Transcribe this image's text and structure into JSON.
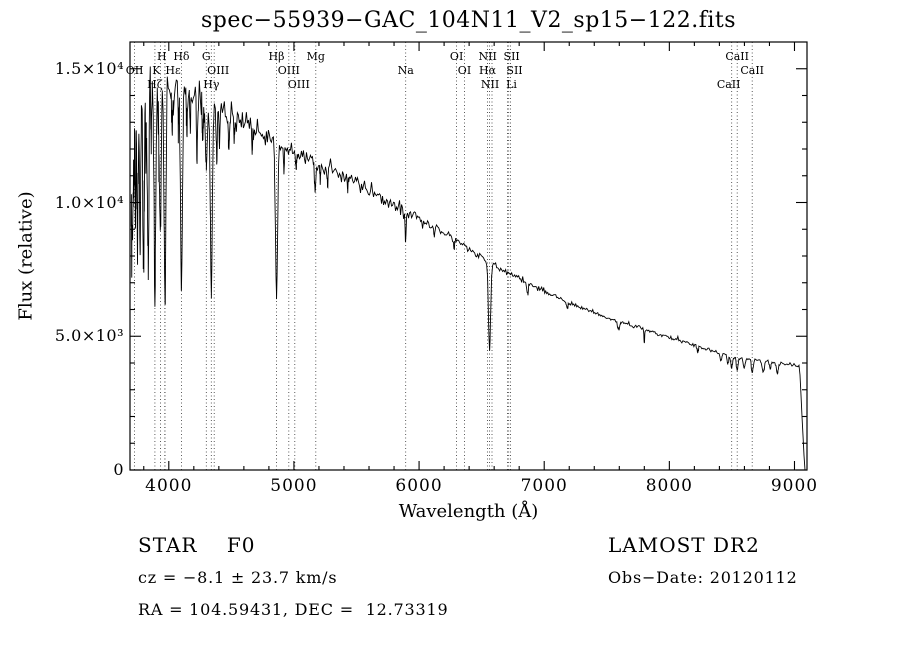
{
  "title": "spec−55939−GAC_104N11_V2_sp15−122.fits",
  "annotations": {
    "class_line": "STAR    F0",
    "survey_line": "LAMOST DR2",
    "cz_line": "cz = −8.1 ± 23.7 km/s",
    "obsdate_line": "Obs−Date: 20120112",
    "radec_line": "RA = 104.59431, DEC =  12.73319"
  },
  "chart_data": {
    "type": "line",
    "title": "spec−55939−GAC_104N11_V2_sp15−122.fits",
    "xlabel": "Wavelength (Å)",
    "ylabel": "Flux (relative)",
    "xlim": [
      3690,
      9100
    ],
    "ylim": [
      0,
      16000
    ],
    "grid": false,
    "legend": false,
    "x_ticks": [
      {
        "value": 4000,
        "label": "4000"
      },
      {
        "value": 5000,
        "label": "5000"
      },
      {
        "value": 6000,
        "label": "6000"
      },
      {
        "value": 7000,
        "label": "7000"
      },
      {
        "value": 8000,
        "label": "8000"
      },
      {
        "value": 9000,
        "label": "9000"
      }
    ],
    "x_minor_step": 200,
    "y_ticks": [
      {
        "value": 0,
        "label": "0"
      },
      {
        "value": 5000,
        "label": "5.0×10³"
      },
      {
        "value": 10000,
        "label": "1.0×10⁴"
      },
      {
        "value": 15000,
        "label": "1.5×10⁴"
      }
    ],
    "y_minor_step": 1000,
    "seed": 20120112,
    "sample_step": 8,
    "flux_cutoff": {
      "start": 9040,
      "end": 9082
    },
    "continuum_points": [
      [
        3700,
        13400
      ],
      [
        3750,
        13900
      ],
      [
        3800,
        14100
      ],
      [
        3850,
        14300
      ],
      [
        3900,
        14400
      ],
      [
        3960,
        14450
      ],
      [
        4020,
        14300
      ],
      [
        4100,
        14200
      ],
      [
        4180,
        14000
      ],
      [
        4250,
        13800
      ],
      [
        4350,
        13600
      ],
      [
        4450,
        13300
      ],
      [
        4550,
        13100
      ],
      [
        4650,
        12800
      ],
      [
        4760,
        12500
      ],
      [
        4861,
        12300
      ],
      [
        4960,
        12000
      ],
      [
        5060,
        11750
      ],
      [
        5175,
        11450
      ],
      [
        5300,
        11150
      ],
      [
        5450,
        10900
      ],
      [
        5600,
        10450
      ],
      [
        5750,
        10000
      ],
      [
        5893,
        9700
      ],
      [
        6000,
        9400
      ],
      [
        6150,
        9000
      ],
      [
        6300,
        8600
      ],
      [
        6450,
        8100
      ],
      [
        6563,
        7800
      ],
      [
        6700,
        7400
      ],
      [
        6850,
        7050
      ],
      [
        7000,
        6700
      ],
      [
        7150,
        6350
      ],
      [
        7300,
        6050
      ],
      [
        7450,
        5800
      ],
      [
        7600,
        5550
      ],
      [
        7750,
        5350
      ],
      [
        7900,
        5100
      ],
      [
        8050,
        4900
      ],
      [
        8200,
        4650
      ],
      [
        8350,
        4450
      ],
      [
        8500,
        4280
      ],
      [
        8650,
        4150
      ],
      [
        8800,
        4050
      ],
      [
        8950,
        3950
      ],
      [
        9100,
        3850
      ]
    ],
    "absorption_features": [
      [
        3703,
        0.35,
        4
      ],
      [
        3712,
        0.3,
        4
      ],
      [
        3722,
        0.22,
        3.5
      ],
      [
        3734,
        0.34,
        4
      ],
      [
        3750,
        0.4,
        4.5
      ],
      [
        3771,
        0.4,
        5
      ],
      [
        3798,
        0.46,
        5.5
      ],
      [
        3820,
        0.14,
        3.5
      ],
      [
        3835,
        0.5,
        6
      ],
      [
        3860,
        0.14,
        3.5
      ],
      [
        3889,
        0.52,
        6.5
      ],
      [
        3920,
        0.13,
        3.5
      ],
      [
        3933,
        0.42,
        6
      ],
      [
        3970,
        0.55,
        7.5
      ],
      [
        4026,
        0.12,
        4
      ],
      [
        4077,
        0.1,
        4
      ],
      [
        4101,
        0.52,
        8
      ],
      [
        4144,
        0.1,
        4
      ],
      [
        4172,
        0.08,
        4
      ],
      [
        4226,
        0.14,
        4.5
      ],
      [
        4271,
        0.1,
        4
      ],
      [
        4300,
        0.17,
        7
      ],
      [
        4340,
        0.5,
        8
      ],
      [
        4383,
        0.13,
        4.5
      ],
      [
        4405,
        0.09,
        4
      ],
      [
        4481,
        0.1,
        4.5
      ],
      [
        4526,
        0.06,
        4
      ],
      [
        4668,
        0.06,
        4
      ],
      [
        4861,
        0.47,
        8.5
      ],
      [
        4920,
        0.06,
        4
      ],
      [
        5018,
        0.05,
        4
      ],
      [
        5169,
        0.08,
        5
      ],
      [
        5210,
        0.04,
        4
      ],
      [
        5269,
        0.05,
        4
      ],
      [
        5430,
        0.03,
        4
      ],
      [
        5893,
        0.12,
        4.5
      ],
      [
        6122,
        0.03,
        4
      ],
      [
        6280,
        0.04,
        4
      ],
      [
        6563,
        0.42,
        8.5
      ],
      [
        6867,
        0.06,
        7
      ],
      [
        7186,
        0.03,
        6
      ],
      [
        7594,
        0.06,
        8
      ],
      [
        7800,
        0.1,
        3
      ],
      [
        8227,
        0.04,
        6
      ],
      [
        8413,
        0.07,
        7
      ],
      [
        8467,
        0.08,
        7
      ],
      [
        8498,
        0.1,
        7
      ],
      [
        8542,
        0.12,
        7
      ],
      [
        8598,
        0.09,
        7
      ],
      [
        8662,
        0.12,
        7
      ],
      [
        8750,
        0.11,
        8
      ],
      [
        8806,
        0.06,
        6
      ],
      [
        8863,
        0.1,
        8
      ]
    ],
    "noise_sigma_profile": [
      [
        3700,
        0.045
      ],
      [
        3900,
        0.035
      ],
      [
        4200,
        0.022
      ],
      [
        4600,
        0.016
      ],
      [
        5200,
        0.012
      ],
      [
        6000,
        0.01
      ],
      [
        6800,
        0.008
      ],
      [
        7600,
        0.007
      ],
      [
        8400,
        0.008
      ],
      [
        9100,
        0.009
      ]
    ],
    "line_markers": [
      {
        "label": "OII",
        "wl": 3727,
        "row": 2
      },
      {
        "label": "Hζ",
        "wl": 3889,
        "row": 3
      },
      {
        "label": "K",
        "wl": 3933,
        "row": 2,
        "dx": -4
      },
      {
        "label": "H",
        "wl": 3968,
        "row": 1,
        "dx": -3
      },
      {
        "label": "Hε",
        "wl": 3970,
        "row": 2,
        "dx": 8
      },
      {
        "label": "Hδ",
        "wl": 4101,
        "row": 1
      },
      {
        "label": "G",
        "wl": 4300,
        "row": 1
      },
      {
        "label": "Hγ",
        "wl": 4340,
        "row": 3
      },
      {
        "label": "OIII",
        "wl": 4363,
        "row": 2,
        "dx": 4
      },
      {
        "label": "Hβ",
        "wl": 4861,
        "row": 1
      },
      {
        "label": "OIII",
        "wl": 4959,
        "row": 2
      },
      {
        "label": "OIII",
        "wl": 5007,
        "row": 3,
        "dx": 4
      },
      {
        "label": "Mg",
        "wl": 5175,
        "row": 1
      },
      {
        "label": "Na",
        "wl": 5893,
        "row": 2
      },
      {
        "label": "OI",
        "wl": 6300,
        "row": 1
      },
      {
        "label": "OI",
        "wl": 6363,
        "row": 2
      },
      {
        "label": "NII",
        "wl": 6548,
        "row": 1
      },
      {
        "label": "Hα",
        "wl": 6563,
        "row": 2,
        "dx": -2
      },
      {
        "label": "NII",
        "wl": 6583,
        "row": 3,
        "dx": -2
      },
      {
        "label": "Li",
        "wl": 6707,
        "row": 3,
        "dx": 4
      },
      {
        "label": "SII",
        "wl": 6716,
        "row": 1,
        "dx": 3
      },
      {
        "label": "SII",
        "wl": 6731,
        "row": 2,
        "dx": 4
      },
      {
        "label": "CaII",
        "wl": 8498,
        "row": 3,
        "dx": -3
      },
      {
        "label": "CaII",
        "wl": 8542,
        "row": 1
      },
      {
        "label": "CaII",
        "wl": 8662,
        "row": 2
      }
    ]
  }
}
